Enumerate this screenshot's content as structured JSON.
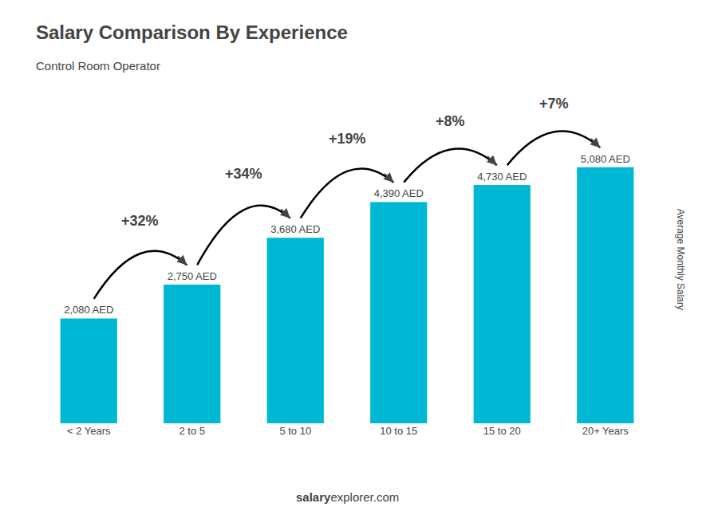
{
  "chart_data": {
    "type": "bar",
    "title": "Salary Comparison By Experience",
    "subtitle": "Control Room Operator",
    "ylabel": "Average Monthly Salary",
    "categories": [
      "< 2 Years",
      "2 to 5",
      "5 to 10",
      "10 to 15",
      "15 to 20",
      "20+ Years"
    ],
    "values": [
      2080,
      2750,
      3680,
      4390,
      4730,
      5080
    ],
    "value_labels": [
      "2,080 AED",
      "2,750 AED",
      "3,680 AED",
      "4,390 AED",
      "4,730 AED",
      "5,080 AED"
    ],
    "data_labels": true,
    "color": "#00b8d4",
    "annotations": [
      "+32%",
      "+34%",
      "+19%",
      "+8%",
      "+7%"
    ],
    "footer": [
      "salary",
      "explorer.com"
    ],
    "ylim": [
      0,
      6500
    ],
    "tick_labels": "x",
    "grid": false
  }
}
